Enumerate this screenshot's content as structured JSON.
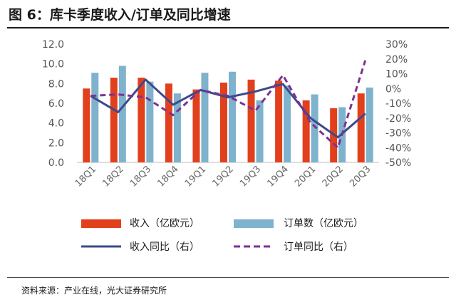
{
  "header": {
    "title": "图 6：库卡季度收入/订单及同比增速"
  },
  "footer": {
    "source": "资料来源：产业在线，光大证券研究所"
  },
  "colors": {
    "revenue_bar": "#e2401c",
    "orders_bar": "#7fb2cc",
    "revenue_yoy_line": "#3d4a8a",
    "orders_yoy_line": "#7b3294"
  },
  "chart_data": {
    "type": "bar",
    "title": "库卡季度收入/订单及同比增速",
    "categories": [
      "18Q1",
      "18Q2",
      "18Q3",
      "18Q4",
      "19Q1",
      "19Q2",
      "19Q3",
      "19Q4",
      "20Q1",
      "20Q2",
      "20Q3"
    ],
    "left_axis": {
      "ylim": [
        0,
        12
      ],
      "ticks": [
        "0.0",
        "2.0",
        "4.0",
        "6.0",
        "8.0",
        "10.0",
        "12.0"
      ]
    },
    "right_axis": {
      "ylim": [
        -50,
        30
      ],
      "ticks": [
        "-50%",
        "-40%",
        "-30%",
        "-20%",
        "-10%",
        "0%",
        "10%",
        "20%",
        "30%"
      ]
    },
    "series": [
      {
        "name": "收入（亿欧元）",
        "type": "bar",
        "axis": "left",
        "values": [
          7.5,
          8.6,
          8.6,
          8.0,
          7.4,
          8.1,
          8.4,
          8.3,
          6.3,
          5.5,
          7.0
        ]
      },
      {
        "name": "订单数（亿欧元）",
        "type": "bar",
        "axis": "left",
        "values": [
          9.1,
          9.8,
          8.2,
          7.0,
          9.1,
          9.2,
          6.3,
          7.8,
          6.9,
          5.6,
          7.6
        ]
      },
      {
        "name": "收入同比（右）",
        "type": "line",
        "axis": "right",
        "style": "solid",
        "values": [
          -5,
          -16,
          6,
          -11,
          -1,
          -6,
          -2,
          3,
          -20,
          -33,
          -17
        ]
      },
      {
        "name": "订单同比（右）",
        "type": "line",
        "axis": "right",
        "style": "dashed",
        "values": [
          -5,
          -4,
          -6,
          -18,
          -1,
          -5,
          -15,
          9,
          -23,
          -40,
          19
        ]
      }
    ],
    "legend_position": "bottom"
  }
}
